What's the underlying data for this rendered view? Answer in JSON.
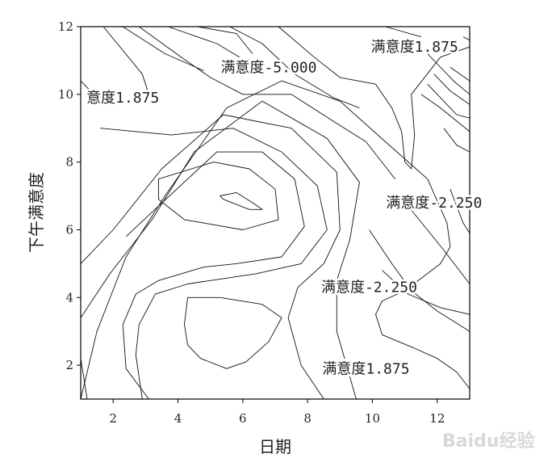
{
  "chart_data": {
    "type": "contour",
    "xlabel": "日期",
    "ylabel": "下午满意度",
    "xlim": [
      1,
      13
    ],
    "ylim": [
      1,
      12
    ],
    "xticks": [
      2,
      4,
      6,
      8,
      10,
      12
    ],
    "yticks": [
      2,
      4,
      6,
      8,
      10,
      12
    ],
    "contour_labels": [
      {
        "text": "满意度1.875",
        "x": 11.3,
        "y": 11.4
      },
      {
        "text": "满意度-5.000",
        "x": 6.8,
        "y": 10.8
      },
      {
        "text": "意度1.875",
        "x": 2.3,
        "y": 9.9
      },
      {
        "text": "满意度-2.250",
        "x": 11.9,
        "y": 6.8
      },
      {
        "text": "满意度-2.250",
        "x": 9.9,
        "y": 4.3
      },
      {
        "text": "满意度1.875",
        "x": 9.8,
        "y": 1.9
      }
    ],
    "contours": [
      {
        "name": "inner-ellipse",
        "points": [
          [
            5.8,
            7.1
          ],
          [
            5.3,
            7.0
          ],
          [
            5.4,
            6.9
          ],
          [
            6.2,
            6.6
          ],
          [
            6.6,
            6.6
          ],
          [
            6.3,
            6.8
          ],
          [
            5.8,
            7.1
          ]
        ]
      },
      {
        "name": "inner-closed-1",
        "points": [
          [
            3.4,
            7.5
          ],
          [
            5.1,
            8.0
          ],
          [
            6.2,
            7.8
          ],
          [
            7.0,
            7.2
          ],
          [
            7.1,
            6.3
          ],
          [
            6.0,
            6.0
          ],
          [
            4.2,
            6.3
          ],
          [
            3.4,
            6.9
          ],
          [
            3.4,
            7.5
          ]
        ]
      },
      {
        "name": "low-closed",
        "points": [
          [
            4.3,
            4.0
          ],
          [
            5.3,
            4.0
          ],
          [
            6.6,
            3.8
          ],
          [
            7.2,
            3.4
          ],
          [
            6.8,
            2.7
          ],
          [
            6.1,
            2.1
          ],
          [
            5.5,
            1.9
          ],
          [
            4.7,
            2.2
          ],
          [
            4.3,
            2.6
          ],
          [
            4.2,
            3.2
          ],
          [
            4.3,
            4.0
          ]
        ]
      },
      {
        "name": "ring-2",
        "points": [
          [
            2.4,
            5.8
          ],
          [
            3.4,
            6.7
          ],
          [
            5.2,
            8.3
          ],
          [
            6.6,
            8.3
          ],
          [
            7.6,
            7.5
          ],
          [
            7.9,
            6.1
          ],
          [
            7.2,
            5.2
          ],
          [
            5.8,
            5.0
          ],
          [
            4.8,
            4.9
          ],
          [
            3.4,
            4.5
          ],
          [
            2.7,
            4.1
          ],
          [
            2.3,
            3.2
          ],
          [
            2.4,
            1.9
          ],
          [
            3.1,
            1.0
          ]
        ]
      },
      {
        "name": "ring-3",
        "points": [
          [
            1.6,
            9.0
          ],
          [
            3.8,
            8.8
          ],
          [
            5.7,
            9.0
          ],
          [
            7.2,
            8.3
          ],
          [
            8.3,
            7.3
          ],
          [
            8.6,
            6.0
          ],
          [
            7.8,
            5.0
          ],
          [
            6.4,
            4.7
          ],
          [
            4.3,
            4.4
          ],
          [
            3.3,
            4.1
          ],
          [
            2.8,
            3.2
          ],
          [
            2.7,
            2.3
          ],
          [
            2.9,
            1.0
          ]
        ]
      },
      {
        "name": "ring-4",
        "points": [
          [
            1.0,
            5.0
          ],
          [
            2.0,
            6.0
          ],
          [
            3.5,
            7.8
          ],
          [
            5.4,
            9.4
          ],
          [
            7.5,
            9.0
          ],
          [
            8.9,
            7.7
          ],
          [
            9.0,
            6.0
          ],
          [
            8.5,
            5.0
          ],
          [
            7.7,
            4.3
          ],
          [
            7.4,
            3.4
          ],
          [
            7.8,
            2.0
          ],
          [
            8.5,
            1.0
          ]
        ]
      },
      {
        "name": "ring-5",
        "points": [
          [
            1.0,
            3.4
          ],
          [
            1.9,
            4.7
          ],
          [
            3.2,
            6.3
          ],
          [
            4.5,
            8.3
          ],
          [
            6.6,
            9.8
          ],
          [
            8.6,
            8.7
          ],
          [
            9.6,
            7.4
          ],
          [
            9.3,
            5.7
          ],
          [
            8.9,
            4.5
          ],
          [
            8.9,
            3.0
          ],
          [
            9.5,
            1.0
          ]
        ]
      },
      {
        "name": "ring-6",
        "points": [
          [
            1.0,
            1.0
          ],
          [
            1.5,
            3.0
          ],
          [
            2.4,
            5.2
          ],
          [
            3.6,
            7.0
          ],
          [
            5.5,
            9.6
          ],
          [
            7.2,
            10.4
          ],
          [
            9.0,
            9.8
          ],
          [
            10.4,
            8.6
          ],
          [
            11.7,
            7.5
          ],
          [
            12.3,
            6.2
          ],
          [
            12.4,
            5.5
          ],
          [
            12.1,
            5.0
          ],
          [
            11.0,
            4.2
          ],
          [
            10.3,
            3.9
          ],
          [
            10.1,
            3.5
          ],
          [
            10.3,
            2.9
          ],
          [
            10.8,
            2.7
          ],
          [
            11.3,
            2.5
          ],
          [
            12.0,
            2.2
          ],
          [
            12.6,
            1.8
          ],
          [
            13.0,
            1.3
          ]
        ]
      },
      {
        "name": "right-line-a",
        "points": [
          [
            9.9,
            6.0
          ],
          [
            10.6,
            5.0
          ],
          [
            11.2,
            4.2
          ],
          [
            12.0,
            3.6
          ],
          [
            13.0,
            3.0
          ]
        ]
      },
      {
        "name": "right-line-b",
        "points": [
          [
            10.3,
            4.8
          ],
          [
            11.1,
            4.1
          ],
          [
            12.1,
            3.7
          ],
          [
            13.0,
            3.5
          ]
        ]
      },
      {
        "name": "right-line-c",
        "points": [
          [
            11.1,
            6.7
          ],
          [
            12.2,
            5.4
          ],
          [
            13.0,
            4.4
          ]
        ]
      },
      {
        "name": "right-line-d",
        "points": [
          [
            12.4,
            7.2
          ],
          [
            12.8,
            6.2
          ],
          [
            13.0,
            5.9
          ]
        ]
      },
      {
        "name": "top-neg5",
        "points": [
          [
            7.1,
            12.0
          ],
          [
            8.2,
            11.1
          ],
          [
            9.0,
            10.5
          ],
          [
            10.1,
            10.3
          ],
          [
            10.6,
            9.6
          ],
          [
            10.9,
            8.9
          ],
          [
            11.0,
            8.0
          ],
          [
            11.2,
            7.8
          ],
          [
            11.3,
            8.8
          ],
          [
            11.2,
            10.0
          ],
          [
            12.1,
            11.1
          ],
          [
            13.0,
            11.4
          ]
        ]
      },
      {
        "name": "top-a",
        "points": [
          [
            5.6,
            12.0
          ],
          [
            6.6,
            11.5
          ],
          [
            7.6,
            10.6
          ],
          [
            8.8,
            9.9
          ],
          [
            9.6,
            9.6
          ]
        ]
      },
      {
        "name": "top-b",
        "points": [
          [
            2.8,
            12.0
          ],
          [
            4.1,
            11.1
          ],
          [
            5.0,
            10.5
          ],
          [
            6.0,
            10.0
          ],
          [
            7.5,
            10.0
          ],
          [
            8.8,
            9.2
          ],
          [
            9.8,
            8.6
          ],
          [
            10.7,
            7.5
          ]
        ]
      },
      {
        "name": "top-c",
        "points": [
          [
            1.7,
            12.0
          ],
          [
            2.9,
            10.6
          ],
          [
            3.1,
            10.0
          ]
        ]
      },
      {
        "name": "top-d",
        "points": [
          [
            1.0,
            10.4
          ],
          [
            1.3,
            10.1
          ]
        ]
      },
      {
        "name": "top-e",
        "points": [
          [
            2.3,
            12.0
          ],
          [
            3.6,
            11.2
          ],
          [
            4.8,
            10.7
          ]
        ]
      },
      {
        "name": "top-f",
        "points": [
          [
            3.7,
            12.0
          ],
          [
            5.2,
            11.5
          ],
          [
            5.9,
            11.1
          ]
        ]
      },
      {
        "name": "top-g",
        "points": [
          [
            4.6,
            12.0
          ],
          [
            5.8,
            11.8
          ],
          [
            6.3,
            11.2
          ]
        ]
      },
      {
        "name": "tr-1",
        "points": [
          [
            10.4,
            12.0
          ],
          [
            11.5,
            11.7
          ]
        ]
      },
      {
        "name": "tr-2",
        "points": [
          [
            11.7,
            11.2
          ],
          [
            12.5,
            10.4
          ],
          [
            13.0,
            10.0
          ]
        ]
      },
      {
        "name": "tr-3",
        "points": [
          [
            12.4,
            10.8
          ],
          [
            13.0,
            10.4
          ]
        ]
      },
      {
        "name": "tr-4",
        "points": [
          [
            11.9,
            10.6
          ],
          [
            12.4,
            10.1
          ],
          [
            13.0,
            9.7
          ]
        ]
      },
      {
        "name": "tr-5",
        "points": [
          [
            11.7,
            10.3
          ],
          [
            12.6,
            9.4
          ],
          [
            13.0,
            9.3
          ]
        ]
      },
      {
        "name": "tr-6",
        "points": [
          [
            12.2,
            9.0
          ],
          [
            12.6,
            8.5
          ],
          [
            13.0,
            8.3
          ]
        ]
      },
      {
        "name": "tr-7",
        "points": [
          [
            12.8,
            11.7
          ],
          [
            13.0,
            11.6
          ]
        ]
      },
      {
        "name": "tr-8",
        "points": [
          [
            11.5,
            10.0
          ],
          [
            12.1,
            9.6
          ],
          [
            13.0,
            8.9
          ]
        ]
      },
      {
        "name": "bl-1",
        "points": [
          [
            1.0,
            2.2
          ],
          [
            1.2,
            1.0
          ]
        ]
      }
    ]
  },
  "watermark": {
    "text": "Baidu经验"
  }
}
